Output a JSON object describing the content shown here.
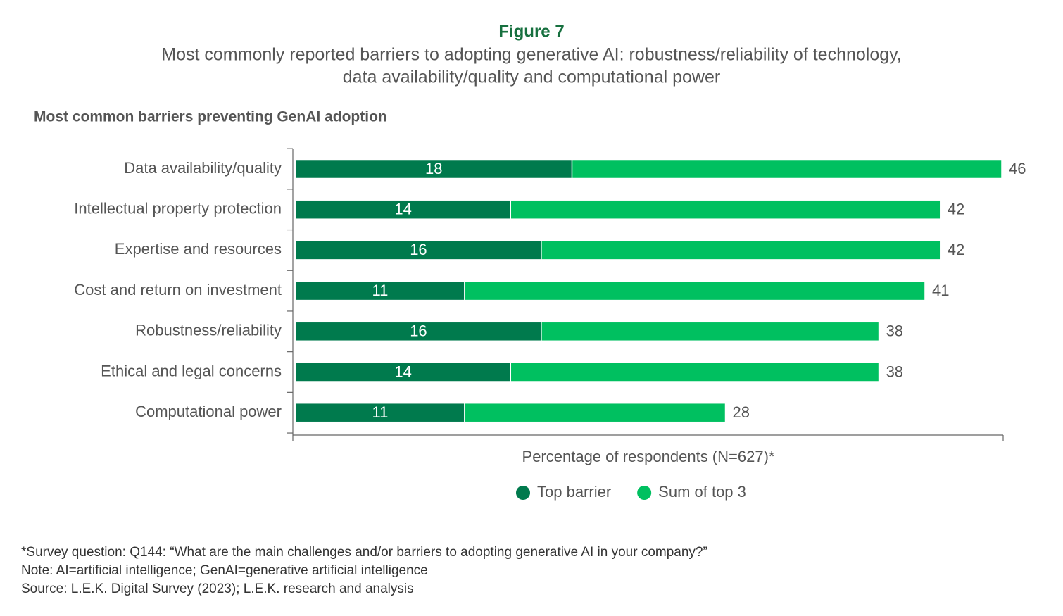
{
  "chart_data": {
    "type": "bar",
    "orientation": "horizontal",
    "overlay": true,
    "figure_label": "Figure 7",
    "title": [
      "Most commonly reported barriers to adopting generative AI: robustness/reliability of technology,",
      "data availability/quality and computational power"
    ],
    "subtitle": "Most common barriers preventing GenAI adoption",
    "categories": [
      "Data availability/quality",
      "Intellectual property protection",
      "Expertise and resources",
      "Cost and return on investment",
      "Robustness/reliability",
      "Ethical and legal concerns",
      "Computational power"
    ],
    "series": [
      {
        "name": "Sum of top 3",
        "color": "#00c060",
        "values": [
          46,
          42,
          42,
          41,
          38,
          38,
          28
        ]
      },
      {
        "name": "Top barrier",
        "color": "#007a4d",
        "values": [
          18,
          14,
          16,
          11,
          16,
          14,
          11
        ]
      }
    ],
    "legend_order": [
      1,
      0
    ],
    "xlabel": "Percentage of respondents (N=627)*",
    "xlim": [
      0,
      46
    ],
    "notes": [
      "*Survey question: Q144: “What are the main challenges and/or barriers to adopting generative AI in your company?”",
      "Note: AI=artificial intelligence; GenAI=generative artificial intelligence",
      "Source: L.E.K. Digital Survey (2023); L.E.K. research and analysis"
    ]
  }
}
